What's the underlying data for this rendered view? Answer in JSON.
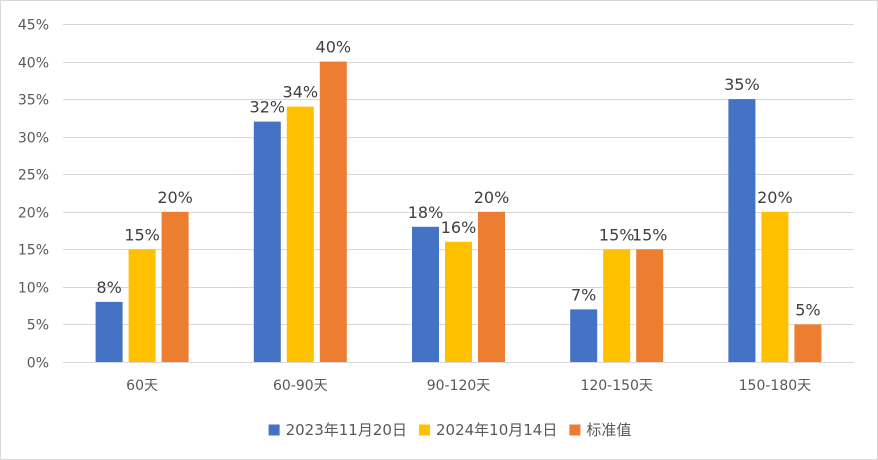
{
  "chart_data": {
    "type": "bar",
    "categories": [
      "60天",
      "60-90天",
      "90-120天",
      "120-150天",
      "150-180天"
    ],
    "series": [
      {
        "name": "2023年11月20日",
        "color": "#4472c4",
        "values": [
          8,
          32,
          18,
          7,
          35
        ]
      },
      {
        "name": "2024年10月14日",
        "color": "#ffc000",
        "values": [
          15,
          34,
          16,
          15,
          20
        ]
      },
      {
        "name": "标准值",
        "color": "#ed7d31",
        "values": [
          20,
          40,
          20,
          15,
          5
        ]
      }
    ],
    "ylim": [
      0,
      45
    ],
    "yticks": [
      "0%",
      "5%",
      "10%",
      "15%",
      "20%",
      "25%",
      "30%",
      "35%",
      "40%",
      "45%"
    ],
    "value_suffix": "%",
    "grid": true,
    "legend": "bottom"
  }
}
